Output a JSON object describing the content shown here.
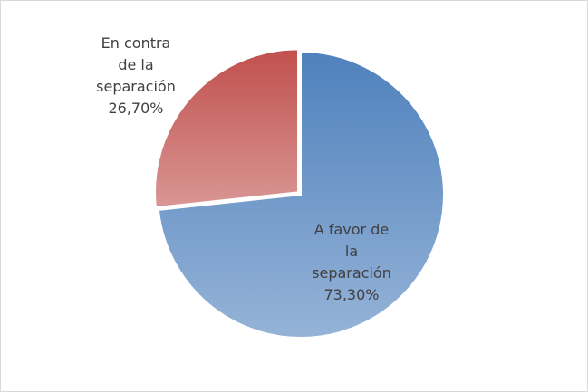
{
  "chart_data": {
    "type": "pie",
    "categories": [
      "A favor de la separación",
      "En contra de la separación"
    ],
    "values": [
      73.3,
      26.7
    ],
    "value_labels": [
      "73,30%",
      "26,70%"
    ],
    "colors": [
      "#4f81bd",
      "#c0504d"
    ]
  }
}
